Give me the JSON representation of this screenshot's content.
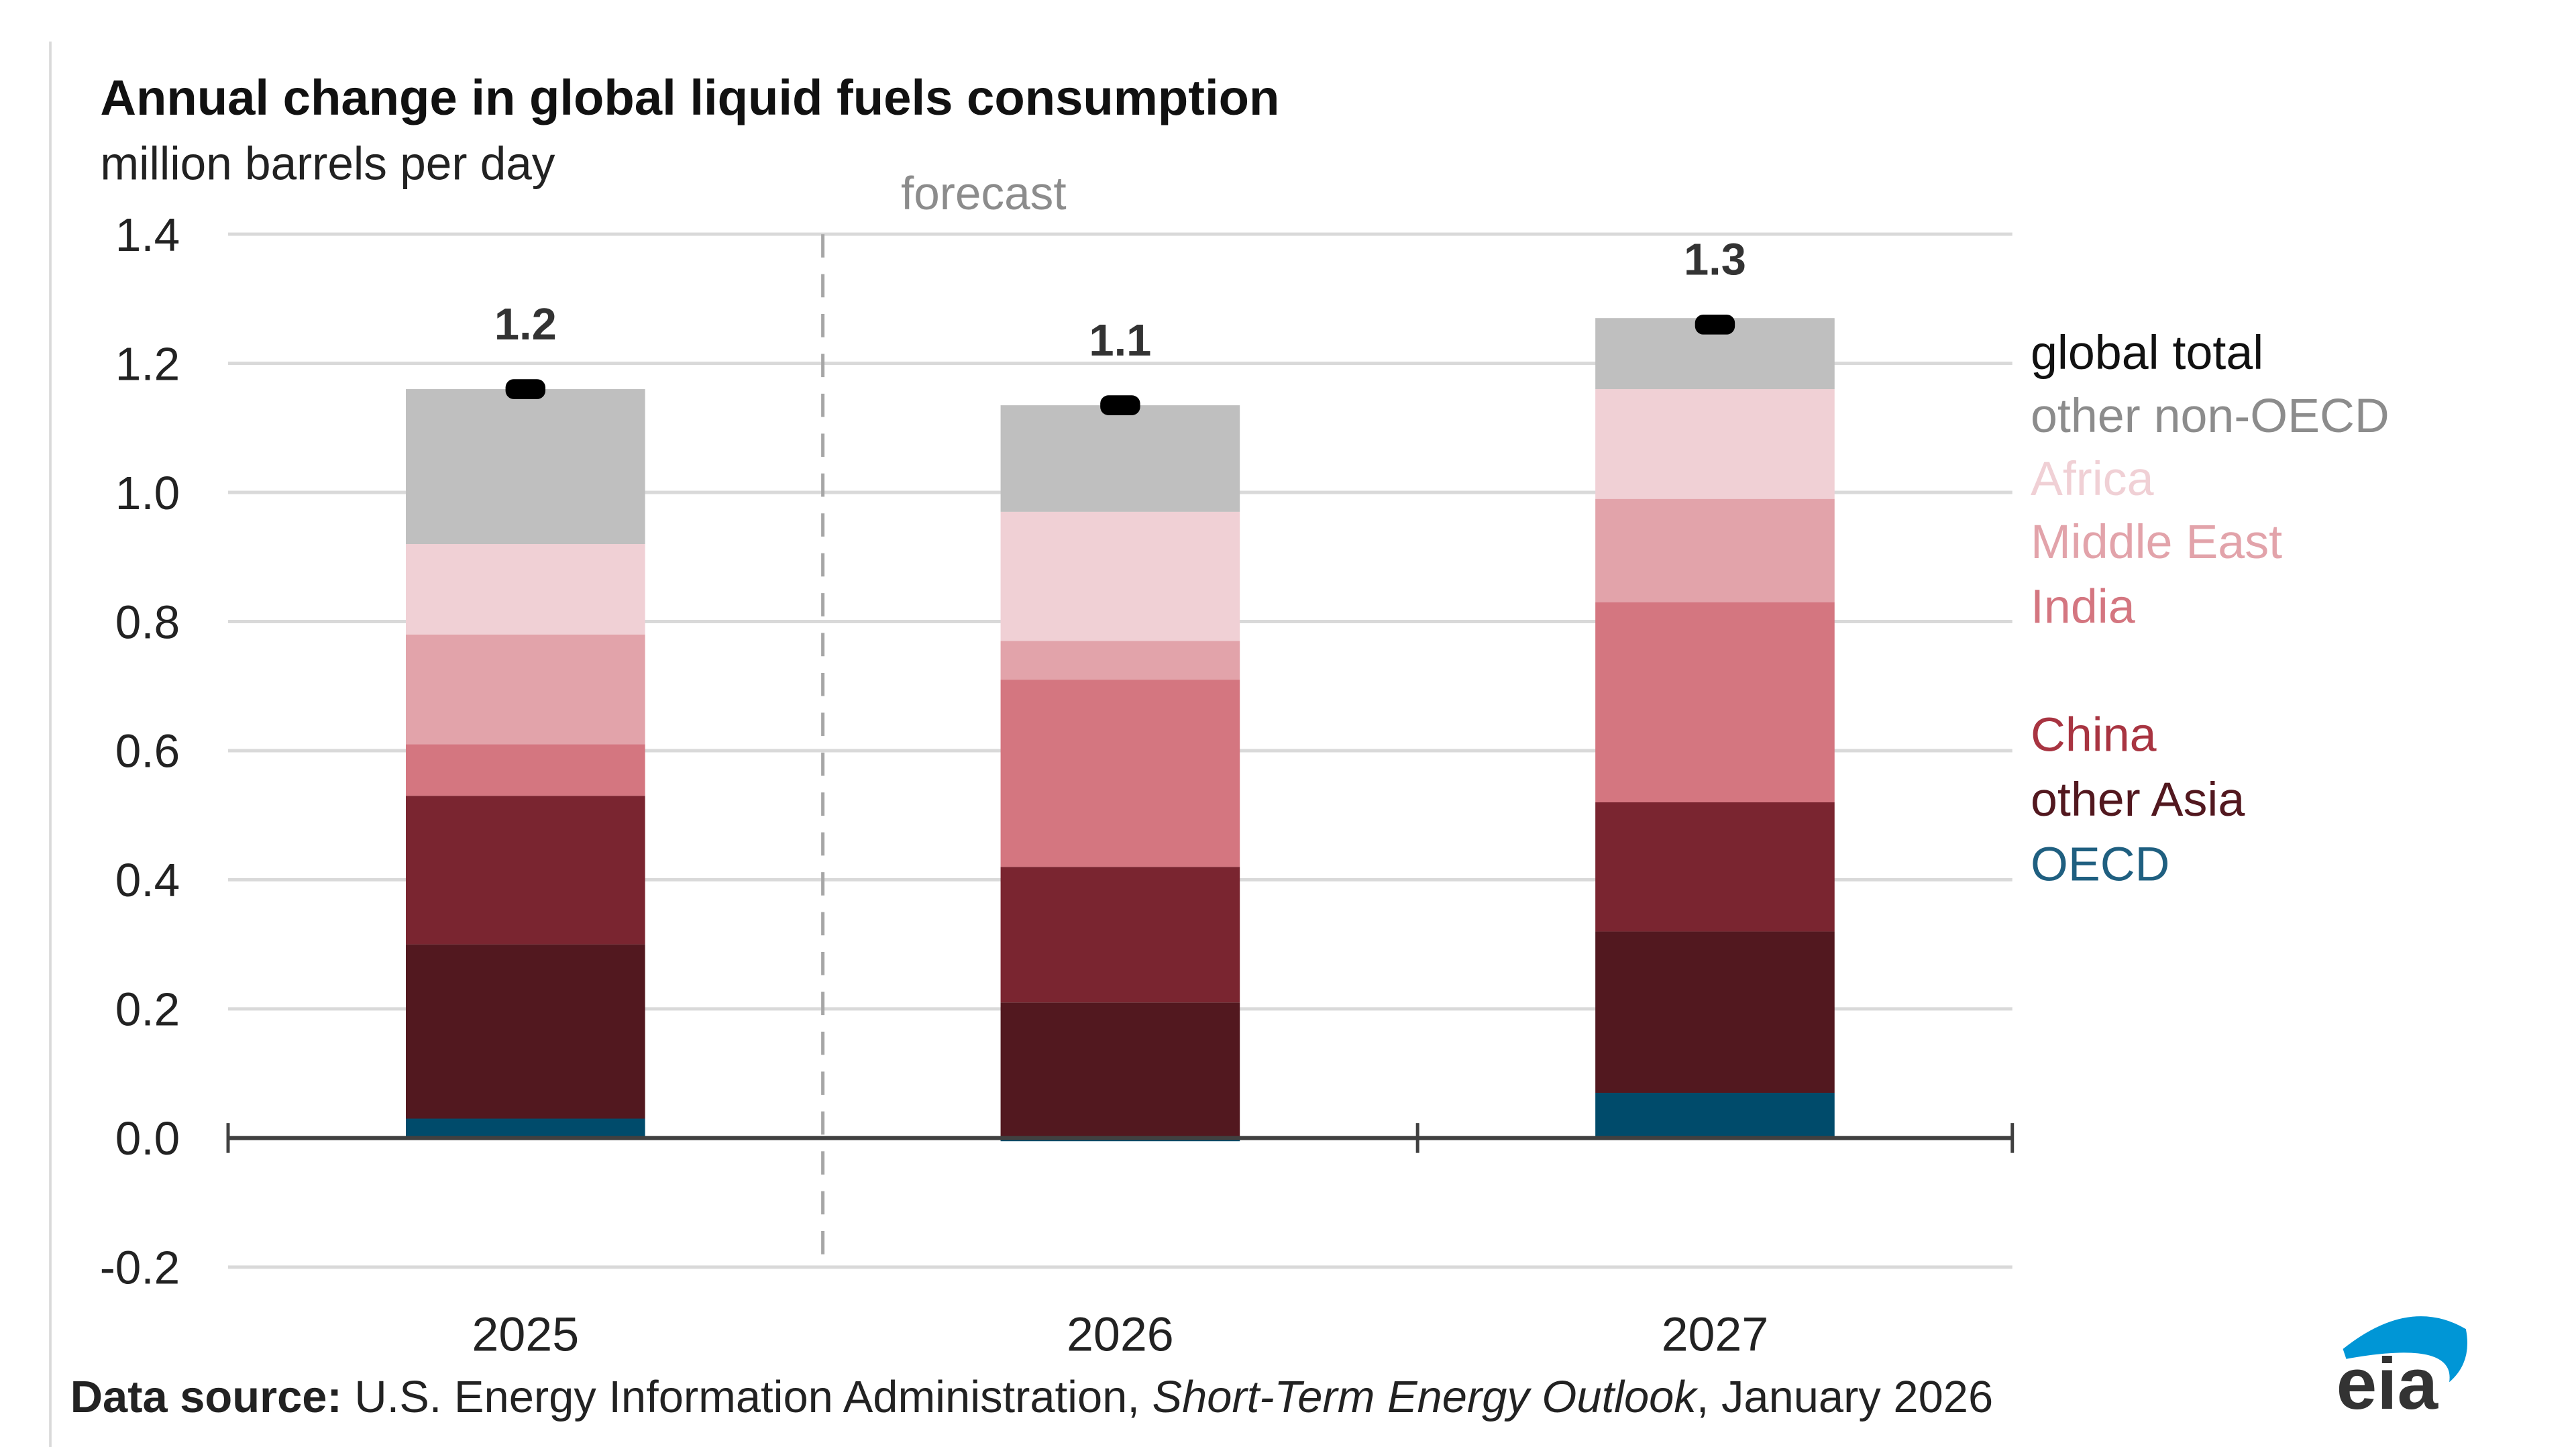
{
  "chart_data": {
    "type": "bar",
    "stacked": true,
    "title": "Annual change in global liquid fuels consumption",
    "subtitle": "million barrels per day",
    "annotation": "forecast",
    "categories": [
      "2025",
      "2026",
      "2027"
    ],
    "ylim": [
      -0.2,
      1.4
    ],
    "yticks": [
      "1.4",
      "1.2",
      "1.0",
      "0.8",
      "0.6",
      "0.4",
      "0.2",
      "0.0",
      "-0.2"
    ],
    "ytick_values": [
      1.4,
      1.2,
      1.0,
      0.8,
      0.6,
      0.4,
      0.2,
      0.0,
      -0.2
    ],
    "grid": true,
    "legend_position": "right",
    "series": [
      {
        "name": "OECD",
        "color": "#004b6b",
        "label_color": "#1f5f80",
        "values": [
          0.03,
          -0.005,
          0.07
        ]
      },
      {
        "name": "other Asia",
        "color": "#52181f",
        "label_color": "#52181f",
        "values": [
          0.27,
          0.21,
          0.25
        ]
      },
      {
        "name": "China",
        "color": "#7a2530",
        "label_color": "#a83441",
        "values": [
          0.23,
          0.21,
          0.2
        ]
      },
      {
        "name": "India",
        "color": "#d47680",
        "label_color": "#d47680",
        "values": [
          0.08,
          0.29,
          0.31
        ]
      },
      {
        "name": "Middle East",
        "color": "#e2a3aa",
        "label_color": "#e2a3aa",
        "values": [
          0.17,
          0.06,
          0.16
        ]
      },
      {
        "name": "Africa",
        "color": "#f0d0d5",
        "label_color": "#f0d0d5",
        "values": [
          0.14,
          0.2,
          0.17
        ]
      },
      {
        "name": "other non-OECD",
        "color": "#bfbfbf",
        "label_color": "#8c8c8c",
        "values": [
          0.24,
          0.165,
          0.11
        ]
      }
    ],
    "global_total": {
      "name": "global total",
      "color": "#000000",
      "values": [
        1.16,
        1.135,
        1.26
      ],
      "labels": [
        "1.2",
        "1.1",
        "1.3"
      ]
    }
  },
  "source": {
    "prefix": "Data source:",
    "text1": " U.S. Energy Information Administration, ",
    "italic": "Short-Term Energy Outlook",
    "text2": ", January 2026"
  },
  "logo": {
    "text": "eia",
    "color": "#0096d6"
  }
}
